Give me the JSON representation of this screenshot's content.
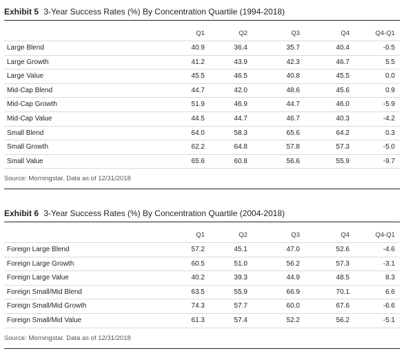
{
  "exhibit5": {
    "tag": "Exhibit 5",
    "title": "3-Year Success Rates (%) By Concentration Quartile (1994-2018)",
    "columns": [
      "Q1",
      "Q2",
      "Q3",
      "Q4",
      "Q4-Q1"
    ],
    "rows": [
      {
        "label": "Large Blend",
        "values": [
          "40.9",
          "36.4",
          "35.7",
          "40.4",
          "-0.5"
        ]
      },
      {
        "label": "Large Growth",
        "values": [
          "41.2",
          "43.9",
          "42.3",
          "46.7",
          "5.5"
        ]
      },
      {
        "label": "Large Value",
        "values": [
          "45.5",
          "46.5",
          "40.8",
          "45.5",
          "0.0"
        ]
      },
      {
        "label": "Mid-Cap Blend",
        "values": [
          "44.7",
          "42.0",
          "48.6",
          "45.6",
          "0.9"
        ]
      },
      {
        "label": "Mid-Cap Growth",
        "values": [
          "51.9",
          "46.9",
          "44.7",
          "46.0",
          "-5.9"
        ]
      },
      {
        "label": "Mid-Cap Value",
        "values": [
          "44.5",
          "44.7",
          "46.7",
          "40.3",
          "-4.2"
        ]
      },
      {
        "label": "Small Blend",
        "values": [
          "64.0",
          "58.3",
          "65.6",
          "64.2",
          "0.3"
        ]
      },
      {
        "label": "Small Growth",
        "values": [
          "62.2",
          "64.8",
          "57.8",
          "57.3",
          "-5.0"
        ]
      },
      {
        "label": "Small Value",
        "values": [
          "65.6",
          "60.8",
          "56.6",
          "55.9",
          "-9.7"
        ]
      }
    ],
    "source": "Source: Morningstar. Data as of 12/31/2018"
  },
  "exhibit6": {
    "tag": "Exhibit 6",
    "title": "3-Year Success Rates (%) By Concentration Quartile (2004-2018)",
    "columns": [
      "Q1",
      "Q2",
      "Q3",
      "Q4",
      "Q4-Q1"
    ],
    "rows": [
      {
        "label": "Foreign Large Blend",
        "values": [
          "57.2",
          "45.1",
          "47.0",
          "52.6",
          "-4.6"
        ]
      },
      {
        "label": "Foreign Large Growth",
        "values": [
          "60.5",
          "51.0",
          "56.2",
          "57.3",
          "-3.1"
        ]
      },
      {
        "label": "Foreign Large Value",
        "values": [
          "40.2",
          "39.3",
          "44.9",
          "48.5",
          "8.3"
        ]
      },
      {
        "label": "Foreign Small/Mid Blend",
        "values": [
          "63.5",
          "55.9",
          "66.9",
          "70.1",
          "6.6"
        ]
      },
      {
        "label": "Foreign Small/Mid Growth",
        "values": [
          "74.3",
          "57.7",
          "60.0",
          "67.6",
          "-6.6"
        ]
      },
      {
        "label": "Foreign Small/Mid Value",
        "values": [
          "61.3",
          "57.4",
          "52.2",
          "56.2",
          "-5.1"
        ]
      }
    ],
    "source": "Source: Morningstar. Data as of 12/31/2018"
  }
}
